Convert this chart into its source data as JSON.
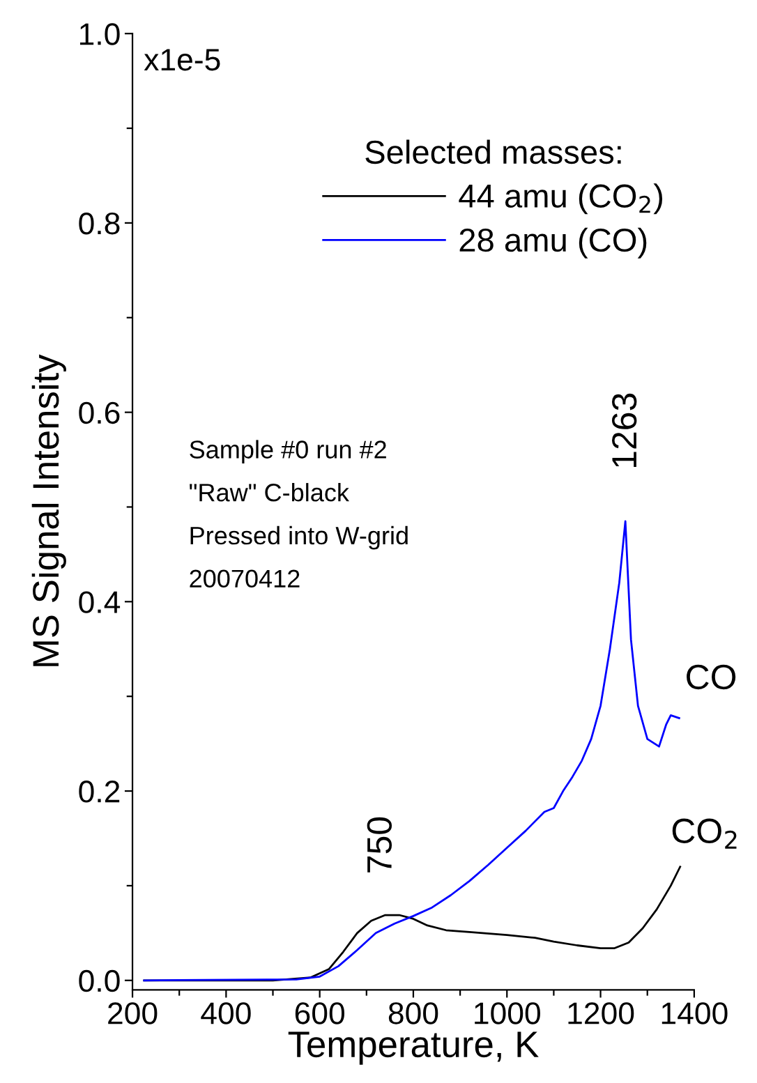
{
  "chart_data": {
    "type": "line",
    "xlabel": "Temperature, K",
    "ylabel": "MS Signal Intensity",
    "legend_title": "Selected masses:",
    "xlim": [
      200,
      1400
    ],
    "ylim": [
      -0.01,
      1.0
    ],
    "xticks": [
      200,
      {
        "value": 300,
        "label": null
      },
      400,
      {
        "value": 500,
        "label": null
      },
      600,
      {
        "value": 700,
        "label": null
      },
      800,
      {
        "value": 900,
        "label": null
      },
      1000,
      {
        "value": 1100,
        "label": null
      },
      1200,
      {
        "value": 1300,
        "label": null
      },
      1400
    ],
    "yticks": [
      {
        "value": 0,
        "label": "0.0"
      },
      {
        "value": 0.1,
        "label": null
      },
      {
        "value": 0.2,
        "label": "0.2"
      },
      {
        "value": 0.3,
        "label": null
      },
      {
        "value": 0.4,
        "label": "0.4"
      },
      {
        "value": 0.5,
        "label": null
      },
      {
        "value": 0.6,
        "label": "0.6"
      },
      {
        "value": 0.7,
        "label": null
      },
      {
        "value": 0.8,
        "label": "0.8"
      },
      {
        "value": 0.9,
        "label": null
      },
      {
        "value": 1.0,
        "label": "1.0"
      }
    ],
    "grid": false,
    "legend": "top right",
    "marker": "none",
    "line_style": "solid",
    "series": [
      {
        "name": "44 amu (CO$_{2}$)",
        "color": "#000000",
        "x": [
          225,
          500,
          580,
          620,
          650,
          680,
          710,
          740,
          770,
          800,
          830,
          870,
          920,
          1000,
          1060,
          1100,
          1150,
          1200,
          1230,
          1260,
          1290,
          1320,
          1350,
          1370
        ],
        "values": [
          0,
          0,
          0.003,
          0.012,
          0.03,
          0.05,
          0.063,
          0.069,
          0.069,
          0.065,
          0.058,
          0.053,
          0.051,
          0.048,
          0.045,
          0.041,
          0.037,
          0.034,
          0.034,
          0.04,
          0.055,
          0.075,
          0.1,
          0.12
        ]
      },
      {
        "name": "28 amu (CO)",
        "color": "#0000ff",
        "x": [
          225,
          550,
          600,
          640,
          680,
          720,
          760,
          800,
          840,
          880,
          920,
          960,
          1000,
          1040,
          1080,
          1100,
          1120,
          1140,
          1160,
          1180,
          1200,
          1220,
          1240,
          1253,
          1265,
          1280,
          1300,
          1325,
          1340,
          1350,
          1368
        ],
        "values": [
          0,
          0.001,
          0.004,
          0.015,
          0.032,
          0.05,
          0.06,
          0.068,
          0.077,
          0.09,
          0.105,
          0.122,
          0.14,
          0.158,
          0.178,
          0.182,
          0.2,
          0.215,
          0.232,
          0.255,
          0.29,
          0.35,
          0.42,
          0.485,
          0.36,
          0.29,
          0.255,
          0.247,
          0.27,
          0.28,
          0.277
        ]
      }
    ],
    "annotations": [
      "1263",
      "750",
      "CO",
      "CO$_{2}$",
      "x1e-5",
      "Sample #0 run #2",
      "\"Raw\" C-black",
      "Pressed into W-grid",
      "20070412"
    ]
  }
}
